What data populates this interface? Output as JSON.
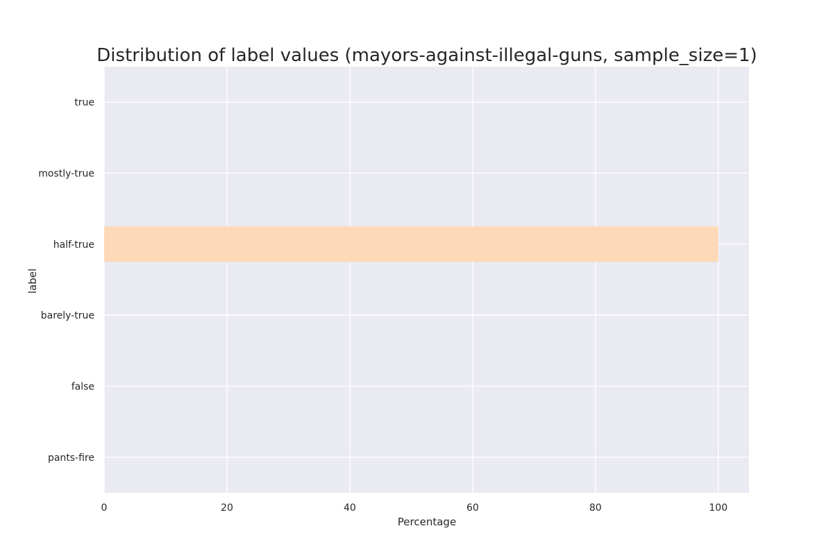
{
  "chart_data": {
    "type": "bar",
    "orientation": "horizontal",
    "title": "Distribution of label values (mayors-against-illegal-guns, sample_size=1)",
    "xlabel": "Percentage",
    "ylabel": "label",
    "categories": [
      "true",
      "mostly-true",
      "half-true",
      "barely-true",
      "false",
      "pants-fire"
    ],
    "values": [
      0,
      0,
      100,
      0,
      0,
      0
    ],
    "xlim": [
      0,
      105
    ],
    "xticks": [
      0,
      20,
      40,
      60,
      80,
      100
    ],
    "grid": true,
    "colors": {
      "background": "#eaeaf2",
      "grid": "#ffffff",
      "bar": "#fdd9b8",
      "text": "#262626"
    }
  }
}
